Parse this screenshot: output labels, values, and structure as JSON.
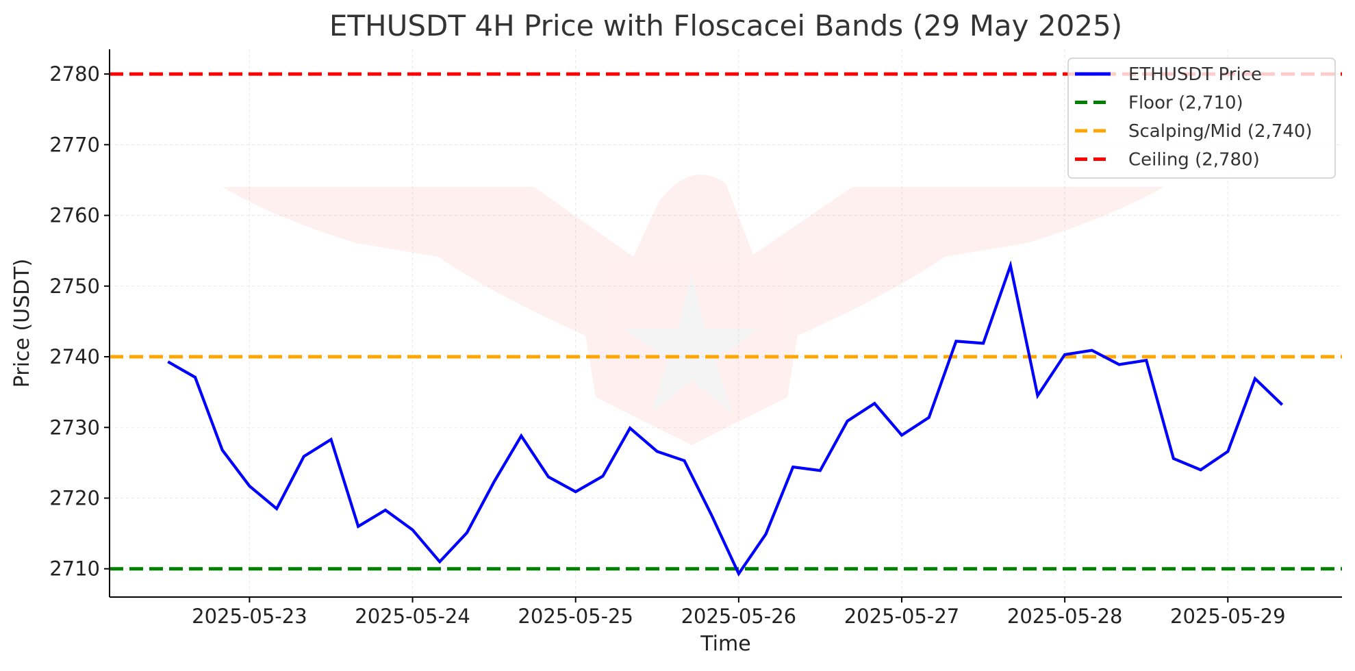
{
  "chart_data": {
    "type": "line",
    "title": "ETHUSDT 4H Price with Floscacei Bands (29 May 2025)",
    "xlabel": "Time",
    "ylabel": "Price (USDT)",
    "ylim": [
      2706,
      2783.5
    ],
    "xlim": [
      "2025-05-22T03:24",
      "2025-05-29T16:48"
    ],
    "grid": true,
    "legend_position": "top-right",
    "x_ticks": [
      "2025-05-23",
      "2025-05-24",
      "2025-05-25",
      "2025-05-26",
      "2025-05-27",
      "2025-05-28",
      "2025-05-29"
    ],
    "y_ticks": [
      2710,
      2720,
      2730,
      2740,
      2750,
      2760,
      2770,
      2780
    ],
    "x": [
      "2025-05-22 12:00",
      "2025-05-22 16:00",
      "2025-05-22 20:00",
      "2025-05-23 00:00",
      "2025-05-23 04:00",
      "2025-05-23 08:00",
      "2025-05-23 12:00",
      "2025-05-23 16:00",
      "2025-05-23 20:00",
      "2025-05-24 00:00",
      "2025-05-24 04:00",
      "2025-05-24 08:00",
      "2025-05-24 12:00",
      "2025-05-24 16:00",
      "2025-05-24 20:00",
      "2025-05-25 00:00",
      "2025-05-25 04:00",
      "2025-05-25 08:00",
      "2025-05-25 12:00",
      "2025-05-25 16:00",
      "2025-05-25 20:00",
      "2025-05-26 00:00",
      "2025-05-26 04:00",
      "2025-05-26 08:00",
      "2025-05-26 12:00",
      "2025-05-26 16:00",
      "2025-05-26 20:00",
      "2025-05-27 00:00",
      "2025-05-27 04:00",
      "2025-05-27 08:00",
      "2025-05-27 12:00",
      "2025-05-27 16:00",
      "2025-05-27 20:00",
      "2025-05-28 00:00",
      "2025-05-28 04:00",
      "2025-05-28 08:00",
      "2025-05-28 12:00",
      "2025-05-28 16:00",
      "2025-05-28 20:00",
      "2025-05-29 00:00",
      "2025-05-29 04:00",
      "2025-05-29 08:00"
    ],
    "series": [
      {
        "name": "ETHUSDT Price",
        "color": "#0000ff",
        "style": "solid",
        "values": [
          2739.3,
          2737.1,
          2726.8,
          2721.7,
          2718.5,
          2725.9,
          2728.3,
          2716.0,
          2718.3,
          2715.5,
          2711.0,
          2715.1,
          2722.3,
          2728.8,
          2723.0,
          2720.9,
          2723.1,
          2729.9,
          2726.6,
          2725.3,
          2717.6,
          2709.3,
          2714.9,
          2724.4,
          2723.9,
          2730.9,
          2733.4,
          2728.9,
          2731.4,
          2742.2,
          2741.9,
          2752.9,
          2734.5,
          2740.3,
          2740.9,
          2738.9,
          2739.5,
          2725.6,
          2724.0,
          2726.6,
          2736.9,
          2733.2
        ]
      }
    ],
    "bands": [
      {
        "name": "Floor (2,710)",
        "value": 2710,
        "color": "#008000",
        "style": "dashed"
      },
      {
        "name": "Scalping/Mid (2,740)",
        "value": 2740,
        "color": "#ffa500",
        "style": "dashed"
      },
      {
        "name": "Ceiling (2,780)",
        "value": 2780,
        "color": "#ff0000",
        "style": "dashed"
      }
    ],
    "watermark": "eagle-emblem"
  }
}
